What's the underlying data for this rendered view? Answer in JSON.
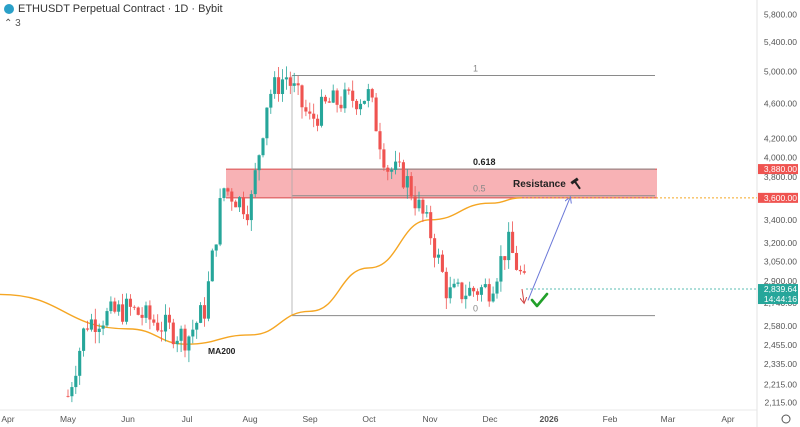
{
  "header": {
    "title": "ETHUSDT Perpetual Contract · 1D · Bybit",
    "indicator_count": "3",
    "collapse_icon": "chevron-up-icon"
  },
  "colors": {
    "up": "#26a69a",
    "down": "#ef5350",
    "ma200": "#f5a623",
    "resistance_fill": "#f7a4a8",
    "resistance_line": "#d94a4a",
    "price_tag_current": "#26a69a",
    "price_tag_red": "#ef5350",
    "check": "#22a02a",
    "arrow_up": "#6b78d8",
    "arrow_down": "#d14545"
  },
  "chart_data": {
    "type": "candlestick",
    "yscale": "log",
    "ylim": [
      2100,
      5900
    ],
    "x_labels": [
      "Apr",
      "May",
      "Jun",
      "Jul",
      "Aug",
      "Sep",
      "Oct",
      "Nov",
      "Dec",
      "2026",
      "Feb",
      "Mar",
      "Apr"
    ],
    "y_ticks": [
      "5,800.00",
      "5,400.00",
      "5,000.00",
      "4,600.00",
      "4,200.00",
      "4,000.00",
      "3,800.00",
      "3,600.00",
      "3,400.00",
      "3,200.00",
      "3,050.00",
      "2,900.00",
      "2,740.00",
      "2,580.00",
      "2,455.00",
      "2,335.00",
      "2,215.00",
      "2,115.00"
    ],
    "price_tags": {
      "resistance_top": "3,880.00",
      "resistance_bottom": "3,600.00",
      "current_price": "2,839.64",
      "countdown": "14:44:16"
    },
    "close_anchors": [
      {
        "month": "May",
        "value": 2150
      },
      {
        "month": "May",
        "value": 2600
      },
      {
        "month": "Jun",
        "value": 2700
      },
      {
        "month": "Jul",
        "value": 2500
      },
      {
        "month": "Jul",
        "value": 2700
      },
      {
        "month": "Jul",
        "value": 3700
      },
      {
        "month": "Aug",
        "value": 3500
      },
      {
        "month": "Aug",
        "value": 4700
      },
      {
        "month": "Aug",
        "value": 4950
      },
      {
        "month": "Sep",
        "value": 4400
      },
      {
        "month": "Sep",
        "value": 4600
      },
      {
        "month": "Oct",
        "value": 4700
      },
      {
        "month": "Oct",
        "value": 3900
      },
      {
        "month": "Oct",
        "value": 3800
      },
      {
        "month": "Nov",
        "value": 3300
      },
      {
        "month": "Nov",
        "value": 2800
      },
      {
        "month": "Dec",
        "value": 2850
      },
      {
        "month": "Dec",
        "value": 3200
      },
      {
        "month": "Dec",
        "value": 2840
      }
    ],
    "ma200": {
      "label": "MA200",
      "points": [
        {
          "month": "Apr",
          "value": 2800
        },
        {
          "month": "Jun",
          "value": 2560
        },
        {
          "month": "Jul",
          "value": 2460
        },
        {
          "month": "Aug",
          "value": 2520
        },
        {
          "month": "Sep",
          "value": 2680
        },
        {
          "month": "Oct",
          "value": 3000
        },
        {
          "month": "Nov",
          "value": 3400
        },
        {
          "month": "Dec",
          "value": 3550
        },
        {
          "month": "Dec",
          "value": 3600
        }
      ]
    },
    "fibonacci": [
      {
        "level": "1",
        "price": 4950
      },
      {
        "level": "0.618",
        "price": 3880
      },
      {
        "level": "0.5",
        "price": 3620
      },
      {
        "level": "0",
        "price": 2650
      }
    ],
    "resistance_zone": {
      "label": "Resistance",
      "top": 3880,
      "bottom": 3600,
      "icon": "hammer-icon"
    },
    "annotations": {
      "projection_target": 3600,
      "pullback_target": 2700,
      "check_icon": "checkmark-icon"
    }
  }
}
